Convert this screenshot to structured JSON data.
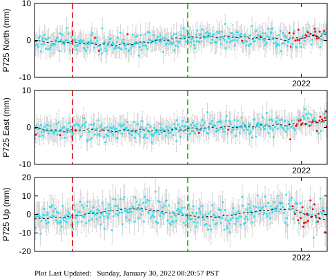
{
  "chart_data": [
    {
      "type": "scatter",
      "ylabel": "P725 North (mm)",
      "ylim": [
        -10,
        10
      ],
      "yticks": [
        -10,
        0,
        10
      ],
      "xlim": [
        2020.45,
        2022.15
      ],
      "xtick_labels": [
        {
          "x": 2022.0,
          "label": "2022"
        }
      ],
      "event_lines": [
        {
          "x": 2020.67,
          "color": "#dd0000"
        },
        {
          "x": 2021.34,
          "color": "#00bb00"
        }
      ],
      "series": [
        {
          "role": "points",
          "color": "#33ddee"
        },
        {
          "role": "recent-points",
          "color": "#ee1111"
        },
        {
          "role": "error-bars",
          "color": "#c8c8c8",
          "halfwidth_mm": 2.6
        },
        {
          "role": "model-fit",
          "color": "#000000",
          "style": "dashed"
        }
      ],
      "trend": [
        [
          2020.45,
          -0.3
        ],
        [
          2020.6,
          -0.4
        ],
        [
          2020.75,
          -0.8
        ],
        [
          2020.9,
          -1.2
        ],
        [
          2021.0,
          -1.0
        ],
        [
          2021.15,
          -0.2
        ],
        [
          2021.3,
          0.6
        ],
        [
          2021.45,
          1.0
        ],
        [
          2021.6,
          1.0
        ],
        [
          2021.75,
          0.6
        ],
        [
          2021.9,
          0.2
        ],
        [
          2022.0,
          0.7
        ],
        [
          2022.15,
          1.6
        ]
      ],
      "noise_sd": 1.3
    },
    {
      "type": "scatter",
      "ylabel": "P725 East (mm)",
      "ylim": [
        -10,
        10
      ],
      "yticks": [
        -10,
        0,
        10
      ],
      "xlim": [
        2020.45,
        2022.15
      ],
      "xtick_labels": [
        {
          "x": 2022.0,
          "label": "2022"
        }
      ],
      "event_lines": [
        {
          "x": 2020.67,
          "color": "#dd0000"
        },
        {
          "x": 2021.34,
          "color": "#00bb00"
        }
      ],
      "series": [
        {
          "role": "points",
          "color": "#33ddee"
        },
        {
          "role": "recent-points",
          "color": "#ee1111"
        },
        {
          "role": "error-bars",
          "color": "#c8c8c8",
          "halfwidth_mm": 2.6
        },
        {
          "role": "model-fit",
          "color": "#000000",
          "style": "dashed"
        }
      ],
      "trend": [
        [
          2020.45,
          -0.4
        ],
        [
          2020.6,
          -1.0
        ],
        [
          2020.75,
          -0.6
        ],
        [
          2020.9,
          -1.0
        ],
        [
          2021.05,
          -0.7
        ],
        [
          2021.2,
          -0.9
        ],
        [
          2021.35,
          -0.4
        ],
        [
          2021.5,
          0.0
        ],
        [
          2021.65,
          0.2
        ],
        [
          2021.8,
          0.5
        ],
        [
          2021.95,
          0.8
        ],
        [
          2022.15,
          1.8
        ]
      ],
      "noise_sd": 1.3
    },
    {
      "type": "scatter",
      "ylabel": "P725 Up (mm)",
      "ylim": [
        -20,
        20
      ],
      "yticks": [
        -20,
        -10,
        0,
        10,
        20
      ],
      "xlim": [
        2020.45,
        2022.15
      ],
      "xtick_labels": [
        {
          "x": 2022.0,
          "label": "2022"
        }
      ],
      "event_lines": [
        {
          "x": 2020.67,
          "color": "#dd0000"
        },
        {
          "x": 2021.34,
          "color": "#00bb00"
        }
      ],
      "series": [
        {
          "role": "points",
          "color": "#33ddee"
        },
        {
          "role": "recent-points",
          "color": "#ee1111"
        },
        {
          "role": "error-bars",
          "color": "#c8c8c8",
          "halfwidth_mm": 6.5
        },
        {
          "role": "model-fit",
          "color": "#000000",
          "style": "dashed"
        }
      ],
      "trend": [
        [
          2020.45,
          -2.5
        ],
        [
          2020.6,
          -1.5
        ],
        [
          2020.75,
          0.0
        ],
        [
          2020.9,
          2.0
        ],
        [
          2021.05,
          3.5
        ],
        [
          2021.2,
          1.5
        ],
        [
          2021.35,
          -1.0
        ],
        [
          2021.5,
          -1.5
        ],
        [
          2021.65,
          0.5
        ],
        [
          2021.8,
          2.5
        ],
        [
          2021.95,
          3.0
        ],
        [
          2022.05,
          -1.0
        ],
        [
          2022.15,
          -3.0
        ]
      ],
      "noise_sd": 3.8
    }
  ],
  "footer": {
    "label": "Plot Last Updated:",
    "timestamp": "Sunday, January 30, 2022 08:20:57 PST"
  }
}
